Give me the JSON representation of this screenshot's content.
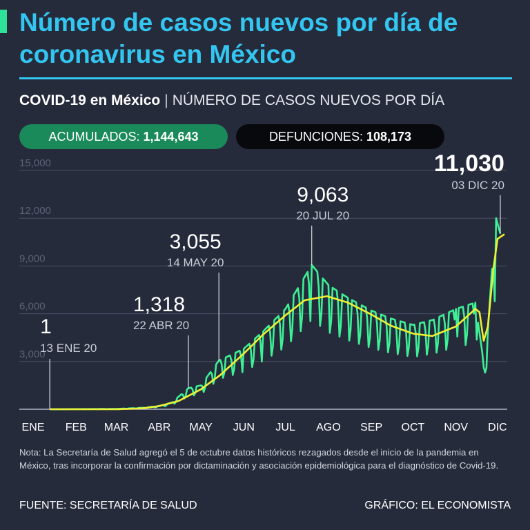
{
  "header": {
    "title": "Número de casos nuevos por día de coronavirus en México",
    "subtitle_bold": "COVID-19 en México",
    "subtitle_sep": "|",
    "subtitle_desc": "NÚMERO DE CASOS NUEVOS POR DÍA"
  },
  "stats": {
    "accumulated_label": "ACUMULADOS:",
    "accumulated_value": "1,144,643",
    "deaths_label": "DEFUNCIONES:",
    "deaths_value": "108,173"
  },
  "colors": {
    "background": "#262b3c",
    "title": "#33c6f0",
    "accent": "#2ee29a",
    "daily_line": "#3df095",
    "trend_line": "#eef034",
    "pill_green": "#1a8a5a",
    "pill_black": "#08090c"
  },
  "chart_data": {
    "type": "line",
    "x_axis": {
      "tick_labels": [
        "ENE",
        "FEB",
        "MAR",
        "ABR",
        "MAY",
        "JUN",
        "JUL",
        "AGO",
        "SEP",
        "OCT",
        "NOV",
        "DIC"
      ],
      "range": [
        "2020-01-01",
        "2020-12-08"
      ]
    },
    "y_axis": {
      "tick_labels": [
        "3,000",
        "6,000",
        "9,000",
        "12,000",
        "15,000"
      ],
      "tick_values": [
        3000,
        6000,
        9000,
        12000,
        15000
      ],
      "range": [
        0,
        15000
      ]
    },
    "grid": true,
    "series": [
      {
        "role": "daily",
        "points": [
          [
            "2020-01-13",
            1
          ],
          [
            "2020-03-01",
            20
          ],
          [
            "2020-03-20",
            90
          ],
          [
            "2020-04-01",
            210
          ],
          [
            "2020-04-10",
            420
          ],
          [
            "2020-04-22",
            1318
          ],
          [
            "2020-05-01",
            1500
          ],
          [
            "2020-05-14",
            3055
          ],
          [
            "2020-05-20",
            3300
          ],
          [
            "2020-06-01",
            3800
          ],
          [
            "2020-06-15",
            4900
          ],
          [
            "2020-07-01",
            6300
          ],
          [
            "2020-07-20",
            9063
          ],
          [
            "2020-08-01",
            7800
          ],
          [
            "2020-08-15",
            7000
          ],
          [
            "2020-09-01",
            6200
          ],
          [
            "2020-09-15",
            5700
          ],
          [
            "2020-10-01",
            5300
          ],
          [
            "2020-10-15",
            5600
          ],
          [
            "2020-11-01",
            6300
          ],
          [
            "2020-11-15",
            6700
          ],
          [
            "2020-11-22",
            2300
          ],
          [
            "2020-11-27",
            8800
          ],
          [
            "2020-11-30",
            12000
          ],
          [
            "2020-12-03",
            11030
          ]
        ]
      },
      {
        "role": "trend",
        "points": [
          [
            "2020-01-13",
            0
          ],
          [
            "2020-03-01",
            0
          ],
          [
            "2020-03-20",
            60
          ],
          [
            "2020-04-01",
            200
          ],
          [
            "2020-04-15",
            520
          ],
          [
            "2020-05-01",
            1250
          ],
          [
            "2020-05-15",
            2150
          ],
          [
            "2020-06-01",
            3500
          ],
          [
            "2020-06-15",
            4700
          ],
          [
            "2020-07-01",
            5900
          ],
          [
            "2020-07-15",
            6850
          ],
          [
            "2020-07-31",
            7100
          ],
          [
            "2020-08-15",
            6700
          ],
          [
            "2020-09-01",
            5950
          ],
          [
            "2020-09-15",
            5250
          ],
          [
            "2020-10-01",
            4750
          ],
          [
            "2020-10-15",
            4600
          ],
          [
            "2020-11-01",
            5200
          ],
          [
            "2020-11-15",
            6300
          ],
          [
            "2020-11-18",
            6100
          ],
          [
            "2020-11-21",
            4300
          ],
          [
            "2020-11-24",
            5200
          ],
          [
            "2020-11-28",
            8800
          ],
          [
            "2020-12-01",
            10700
          ],
          [
            "2020-12-06",
            11000
          ]
        ]
      }
    ],
    "annotations": [
      {
        "date": "2020-01-13",
        "value": 1,
        "value_label": "1",
        "date_label": "13 ENE 20"
      },
      {
        "date": "2020-04-22",
        "value": 1318,
        "value_label": "1,318",
        "date_label": "22 ABR 20"
      },
      {
        "date": "2020-05-14",
        "value": 3055,
        "value_label": "3,055",
        "date_label": "14 MAY 20"
      },
      {
        "date": "2020-07-20",
        "value": 9063,
        "value_label": "9,063",
        "date_label": "20 JUL 20"
      },
      {
        "date": "2020-12-03",
        "value": 11030,
        "value_label": "11,030",
        "date_label": "03 DIC 20"
      }
    ]
  },
  "note": "Nota: La Secretaría de Salud agregó el 5 de octubre datos históricos rezagados desde el inicio de la pandemia en México, tras incorporar la confirmación por dictaminación y asociación epidemiológica para el diagnóstico de Covid-19.",
  "footer": {
    "source": "FUENTE: SECRETARÍA DE SALUD",
    "credit": "GRÁFICO: EL ECONOMISTA"
  }
}
